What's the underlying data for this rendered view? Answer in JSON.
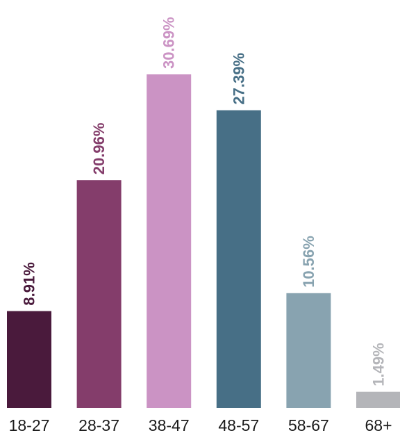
{
  "chart_data": {
    "type": "bar",
    "title": "",
    "xlabel": "",
    "ylabel": "",
    "categories": [
      "18-27",
      "28-37",
      "38-47",
      "48-57",
      "58-67",
      "68+"
    ],
    "values": [
      8.91,
      20.96,
      30.69,
      27.39,
      10.56,
      1.49
    ],
    "value_labels": [
      "8.91%",
      "20.96%",
      "30.69%",
      "27.39%",
      "10.56%",
      "1.49%"
    ],
    "colors": [
      "#4a1a3c",
      "#843d6b",
      "#cb93c4",
      "#476f86",
      "#88a3b0",
      "#b4b5b9"
    ],
    "label_colors": [
      "#4a1a3c",
      "#843d6b",
      "#cb93c4",
      "#476f86",
      "#88a3b0",
      "#b4b5b9"
    ],
    "ylim": [
      0,
      30.69
    ],
    "grid": false,
    "legend": "none"
  }
}
